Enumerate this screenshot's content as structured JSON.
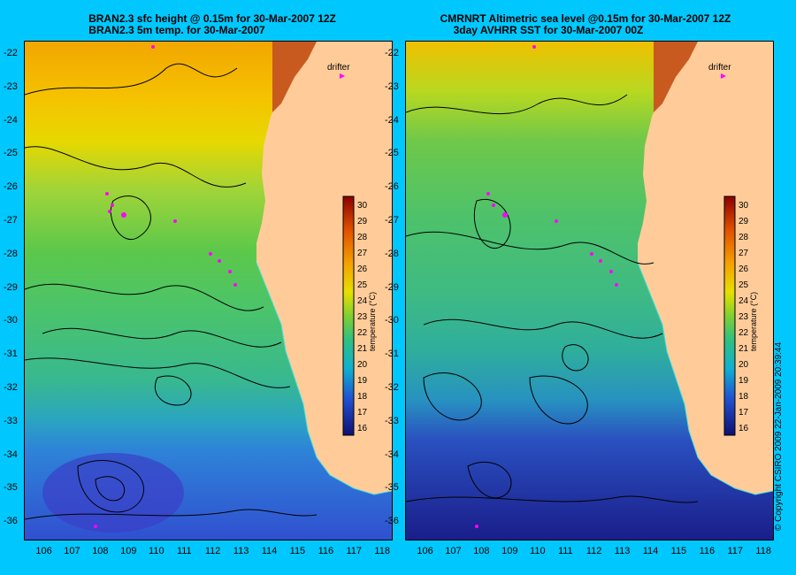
{
  "left_panel": {
    "title_line1": "BRAN2.3 sfc height @ 0.15m for 30-Mar-2007 12Z",
    "title_line2": "BRAN2.3 5m temp. for 30-Mar-2007",
    "drifter_label": "drifter",
    "colorbar_label": "temperature (°C)"
  },
  "right_panel": {
    "title_line1": "CMRNRT Altimetric sea level  @0.15m  for 30-Mar-2007 12Z",
    "title_line2": "3day AVHRR SST for 30-Mar-2007 00Z",
    "drifter_label": "drifter",
    "colorbar_label": "temperature (°C)"
  },
  "map_extent": {
    "lon": [
      105.3,
      118.3
    ],
    "lat": [
      -36.5,
      -21.6
    ]
  },
  "lat_ticks": [
    "-22",
    "-23",
    "-24",
    "-25",
    "-26",
    "-27",
    "-28",
    "-29",
    "-30",
    "-31",
    "-32",
    "-33",
    "-34",
    "-35",
    "-36"
  ],
  "lon_ticks": [
    "106",
    "107",
    "108",
    "109",
    "110",
    "111",
    "112",
    "113",
    "114",
    "115",
    "116",
    "117",
    "118"
  ],
  "colorbar_ticks": [
    "30",
    "29",
    "28",
    "27",
    "26",
    "25",
    "24",
    "23",
    "22",
    "21",
    "20",
    "19",
    "18",
    "17",
    "16"
  ],
  "colorbar_range": [
    15.5,
    30.5
  ],
  "copyright": "© Copyright CSIRO 2009    22-Jan-2009 20:39:44",
  "colors": {
    "background": "#00c8ff",
    "land": "#ffcc99",
    "coastline": "#40e0e0",
    "drifter": "#ff00ff",
    "contour": "#000000"
  }
}
